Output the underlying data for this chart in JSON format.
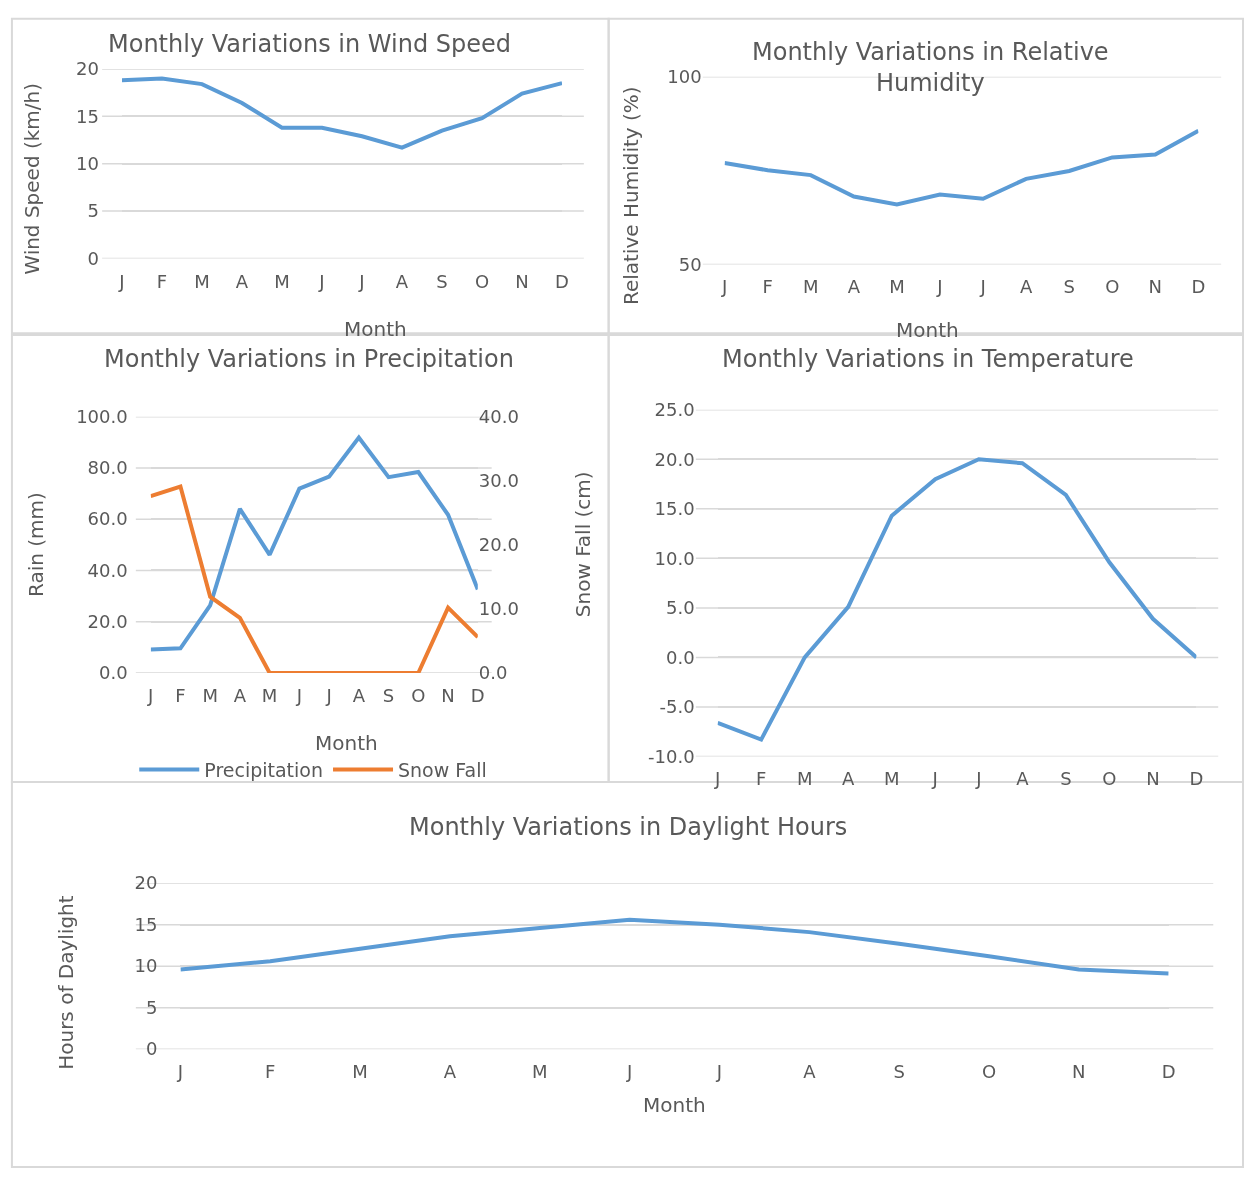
{
  "chart_data": [
    {
      "type": "line",
      "title": "Monthly Variations in Wind Speed",
      "xlabel": "Month",
      "ylabel": "Wind Speed (km/h)",
      "categories": [
        "J",
        "F",
        "M",
        "A",
        "M",
        "J",
        "J",
        "A",
        "S",
        "O",
        "N",
        "D"
      ],
      "series": [
        {
          "color": "#5b9bd5",
          "values": [
            18.8,
            19.0,
            18.4,
            16.4,
            13.8,
            13.8,
            12.9,
            11.7,
            13.5,
            14.8,
            17.4,
            18.5
          ]
        }
      ],
      "ylim": [
        0,
        20
      ],
      "yticks": [
        0,
        5,
        10,
        15,
        20
      ],
      "grid": "y",
      "legend": false
    },
    {
      "type": "line",
      "title": "Monthly Variations in Relative Humidity",
      "xlabel": "Month",
      "ylabel": "Relative Humidity (%)",
      "categories": [
        "J",
        "F",
        "M",
        "A",
        "M",
        "J",
        "J",
        "A",
        "S",
        "O",
        "N",
        "D"
      ],
      "series": [
        {
          "color": "#5b9bd5",
          "values": [
            77.0,
            75.1,
            73.8,
            68.1,
            66.0,
            68.6,
            67.5,
            72.8,
            74.9,
            78.5,
            79.3,
            85.6
          ]
        }
      ],
      "ylim": [
        50,
        100
      ],
      "yticks": [
        50,
        100
      ],
      "grid": "y",
      "legend": false
    },
    {
      "type": "line",
      "title": "Monthly Variations in Precipitation",
      "xlabel": "Month",
      "ylabel": "Rain (mm)",
      "y2label": "Snow Fall (cm)",
      "categories": [
        "J",
        "F",
        "M",
        "A",
        "M",
        "J",
        "J",
        "A",
        "S",
        "O",
        "N",
        "D"
      ],
      "series": [
        {
          "name": "Precipitation",
          "color": "#5b9bd5",
          "values": [
            9.2,
            9.6,
            26.4,
            64.0,
            46.1,
            71.9,
            76.6,
            91.8,
            76.4,
            78.4,
            61.7,
            32.6
          ]
        },
        {
          "name": "Snow Fall",
          "color": "#ed7d31",
          "axis": "y2",
          "values": [
            27.6,
            29.1,
            11.9,
            8.6,
            0,
            0,
            0,
            0,
            0,
            0,
            10.2,
            5.6
          ]
        }
      ],
      "ylim": [
        0,
        100
      ],
      "yticks": [
        {
          "value": 0,
          "label": "0.0"
        },
        {
          "value": 20,
          "label": "20.0"
        },
        {
          "value": 40,
          "label": "40.0"
        },
        {
          "value": 60,
          "label": "60.0"
        },
        {
          "value": 80,
          "label": "80.0"
        },
        {
          "value": 100,
          "label": "100.0"
        }
      ],
      "y2lim": [
        0,
        40
      ],
      "y2ticks": [
        {
          "value": 0,
          "label": "0.0"
        },
        {
          "value": 10,
          "label": "10.0"
        },
        {
          "value": 20,
          "label": "20.0"
        },
        {
          "value": 30,
          "label": "30.0"
        },
        {
          "value": 40,
          "label": "40.0"
        }
      ],
      "grid": "y",
      "legend": "bottom"
    },
    {
      "type": "line",
      "title": "Monthly Variations in Temperature",
      "categories": [
        "J",
        "F",
        "M",
        "A",
        "M",
        "J",
        "J",
        "A",
        "S",
        "O",
        "N",
        "D"
      ],
      "series": [
        {
          "color": "#5b9bd5",
          "values": [
            -6.6,
            -8.3,
            0.0,
            5.1,
            14.3,
            18.0,
            20.0,
            19.6,
            16.4,
            9.6,
            3.9,
            0.0
          ]
        }
      ],
      "ylim": [
        -10,
        25
      ],
      "yticks": [
        {
          "value": -10,
          "label": "-10.0"
        },
        {
          "value": -5,
          "label": "-5.0"
        },
        {
          "value": 0,
          "label": "0.0"
        },
        {
          "value": 5,
          "label": "5.0"
        },
        {
          "value": 10,
          "label": "10.0"
        },
        {
          "value": 15,
          "label": "15.0"
        },
        {
          "value": 20,
          "label": "20.0"
        },
        {
          "value": 25,
          "label": "25.0"
        }
      ],
      "grid": "y",
      "legend": false
    },
    {
      "type": "line",
      "title": "Monthly Variations in Daylight Hours",
      "xlabel": "Month",
      "ylabel": "Hours of Daylight",
      "categories": [
        "J",
        "F",
        "M",
        "A",
        "M",
        "J",
        "J",
        "A",
        "S",
        "O",
        "N",
        "D"
      ],
      "series": [
        {
          "color": "#5b9bd5",
          "values": [
            9.6,
            10.6,
            12.1,
            13.6,
            14.6,
            15.6,
            15.0,
            14.1,
            12.7,
            11.2,
            9.6,
            9.1
          ]
        }
      ],
      "ylim": [
        0,
        20
      ],
      "yticks": [
        0,
        5,
        10,
        15,
        20
      ],
      "grid": "y",
      "legend": false
    }
  ]
}
